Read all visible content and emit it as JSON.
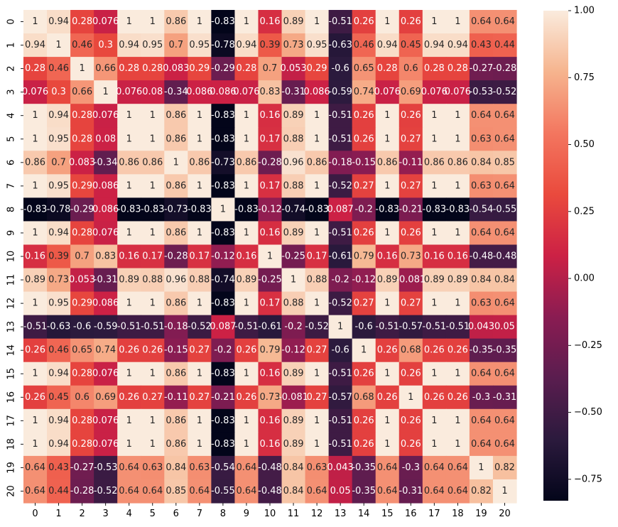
{
  "chart_data": {
    "type": "heatmap",
    "title": "",
    "xlabel": "",
    "ylabel": "",
    "x_labels": [
      "0",
      "1",
      "2",
      "3",
      "4",
      "5",
      "6",
      "7",
      "8",
      "9",
      "10",
      "11",
      "12",
      "13",
      "14",
      "15",
      "16",
      "17",
      "18",
      "19",
      "20"
    ],
    "y_labels": [
      "0",
      "1",
      "2",
      "3",
      "4",
      "5",
      "6",
      "7",
      "8",
      "9",
      "10",
      "11",
      "12",
      "13",
      "14",
      "15",
      "16",
      "17",
      "18",
      "19",
      "20"
    ],
    "colorbar": {
      "ticks": [
        "1.00",
        "0.75",
        "0.50",
        "0.25",
        "0.00",
        "−0.25",
        "−0.50",
        "−0.75"
      ],
      "vmin": -0.83,
      "vmax": 1.0
    },
    "cell_labels": [
      [
        "1",
        "0.94",
        "0.28",
        "0.076",
        "1",
        "1",
        "0.86",
        "1",
        "-0.83",
        "1",
        "0.16",
        "0.89",
        "1",
        "-0.51",
        "0.26",
        "1",
        "0.26",
        "1",
        "1",
        "0.64",
        "0.64"
      ],
      [
        "0.94",
        "1",
        "0.46",
        "0.3",
        "0.94",
        "0.95",
        "0.7",
        "0.95",
        "-0.78",
        "0.94",
        "0.39",
        "0.73",
        "0.95",
        "-0.63",
        "0.46",
        "0.94",
        "0.45",
        "0.94",
        "0.94",
        "0.43",
        "0.44"
      ],
      [
        "0.28",
        "0.46",
        "1",
        "0.66",
        "0.28",
        "0.28",
        "0.083",
        "0.29",
        "-0.29",
        "0.28",
        "0.7",
        "0.053",
        "0.29",
        "-0.6",
        "0.65",
        "0.28",
        "0.6",
        "0.28",
        "0.28",
        "-0.27",
        "-0.28"
      ],
      [
        "0.076",
        "0.3",
        "0.66",
        "1",
        "0.076",
        "0.08",
        "-0.34",
        "0.086",
        "0.086",
        "0.076",
        "0.83",
        "-0.31",
        "0.086",
        "-0.59",
        "0.74",
        "0.076",
        "0.69",
        "0.076",
        "0.076",
        "-0.53",
        "-0.52"
      ],
      [
        "1",
        "0.94",
        "0.28",
        "0.076",
        "1",
        "1",
        "0.86",
        "1",
        "-0.83",
        "1",
        "0.16",
        "0.89",
        "1",
        "-0.51",
        "0.26",
        "1",
        "0.26",
        "1",
        "1",
        "0.64",
        "0.64"
      ],
      [
        "1",
        "0.95",
        "0.28",
        "0.08",
        "1",
        "1",
        "0.86",
        "1",
        "-0.83",
        "1",
        "0.17",
        "0.88",
        "1",
        "-0.51",
        "0.26",
        "1",
        "0.27",
        "1",
        "1",
        "0.63",
        "0.64"
      ],
      [
        "0.86",
        "0.7",
        "0.083",
        "-0.34",
        "0.86",
        "0.86",
        "1",
        "0.86",
        "-0.73",
        "0.86",
        "-0.28",
        "0.96",
        "0.86",
        "-0.18",
        "-0.15",
        "0.86",
        "-0.11",
        "0.86",
        "0.86",
        "0.84",
        "0.85"
      ],
      [
        "1",
        "0.95",
        "0.29",
        "0.086",
        "1",
        "1",
        "0.86",
        "1",
        "-0.83",
        "1",
        "0.17",
        "0.88",
        "1",
        "-0.52",
        "0.27",
        "1",
        "0.27",
        "1",
        "1",
        "0.63",
        "0.64"
      ],
      [
        "-0.83",
        "-0.78",
        "-0.29",
        "0.086",
        "-0.83",
        "-0.83",
        "-0.73",
        "-0.83",
        "1",
        "-0.83",
        "-0.12",
        "-0.74",
        "-0.83",
        "0.087",
        "-0.2",
        "-0.83",
        "-0.21",
        "-0.83",
        "-0.83",
        "-0.54",
        "-0.55"
      ],
      [
        "1",
        "0.94",
        "0.28",
        "0.076",
        "1",
        "1",
        "0.86",
        "1",
        "-0.83",
        "1",
        "0.16",
        "0.89",
        "1",
        "-0.51",
        "0.26",
        "1",
        "0.26",
        "1",
        "1",
        "0.64",
        "0.64"
      ],
      [
        "0.16",
        "0.39",
        "0.7",
        "0.83",
        "0.16",
        "0.17",
        "-0.28",
        "0.17",
        "-0.12",
        "0.16",
        "1",
        "-0.25",
        "0.17",
        "-0.61",
        "0.79",
        "0.16",
        "0.73",
        "0.16",
        "0.16",
        "-0.48",
        "-0.48"
      ],
      [
        "0.89",
        "0.73",
        "0.053",
        "-0.31",
        "0.89",
        "0.88",
        "0.96",
        "0.88",
        "-0.74",
        "0.89",
        "-0.25",
        "1",
        "0.88",
        "-0.2",
        "-0.12",
        "0.89",
        "-0.081",
        "0.89",
        "0.89",
        "0.84",
        "0.84"
      ],
      [
        "1",
        "0.95",
        "0.29",
        "0.086",
        "1",
        "1",
        "0.86",
        "1",
        "-0.83",
        "1",
        "0.17",
        "0.88",
        "1",
        "-0.52",
        "0.27",
        "1",
        "0.27",
        "1",
        "1",
        "0.63",
        "0.64"
      ],
      [
        "-0.51",
        "-0.63",
        "-0.6",
        "-0.59",
        "-0.51",
        "-0.51",
        "-0.18",
        "-0.52",
        "0.087",
        "-0.51",
        "-0.61",
        "-0.2",
        "-0.52",
        "1",
        "-0.6",
        "-0.51",
        "-0.57",
        "-0.51",
        "-0.51",
        "0.043",
        "0.05"
      ],
      [
        "0.26",
        "0.46",
        "0.65",
        "0.74",
        "0.26",
        "0.26",
        "-0.15",
        "0.27",
        "-0.2",
        "0.26",
        "0.79",
        "-0.12",
        "0.27",
        "-0.6",
        "1",
        "0.26",
        "0.68",
        "0.26",
        "0.26",
        "-0.35",
        "-0.35"
      ],
      [
        "1",
        "0.94",
        "0.28",
        "0.076",
        "1",
        "1",
        "0.86",
        "1",
        "-0.83",
        "1",
        "0.16",
        "0.89",
        "1",
        "-0.51",
        "0.26",
        "1",
        "0.26",
        "1",
        "1",
        "0.64",
        "0.64"
      ],
      [
        "0.26",
        "0.45",
        "0.6",
        "0.69",
        "0.26",
        "0.27",
        "-0.11",
        "0.27",
        "-0.21",
        "0.26",
        "0.73",
        "-0.081",
        "0.27",
        "-0.57",
        "0.68",
        "0.26",
        "1",
        "0.26",
        "0.26",
        "-0.3",
        "-0.31"
      ],
      [
        "1",
        "0.94",
        "0.28",
        "0.076",
        "1",
        "1",
        "0.86",
        "1",
        "-0.83",
        "1",
        "0.16",
        "0.89",
        "1",
        "-0.51",
        "0.26",
        "1",
        "0.26",
        "1",
        "1",
        "0.64",
        "0.64"
      ],
      [
        "1",
        "0.94",
        "0.28",
        "0.076",
        "1",
        "1",
        "0.86",
        "1",
        "-0.83",
        "1",
        "0.16",
        "0.89",
        "1",
        "-0.51",
        "0.26",
        "1",
        "0.26",
        "1",
        "1",
        "0.64",
        "0.64"
      ],
      [
        "0.64",
        "0.43",
        "-0.27",
        "-0.53",
        "0.64",
        "0.63",
        "0.84",
        "0.63",
        "-0.54",
        "0.64",
        "-0.48",
        "0.84",
        "0.63",
        "0.043",
        "-0.35",
        "0.64",
        "-0.3",
        "0.64",
        "0.64",
        "1",
        "0.82"
      ],
      [
        "0.64",
        "0.44",
        "-0.28",
        "-0.52",
        "0.64",
        "0.64",
        "0.85",
        "0.64",
        "-0.55",
        "0.64",
        "-0.48",
        "0.84",
        "0.64",
        "0.05",
        "-0.35",
        "0.64",
        "-0.31",
        "0.64",
        "0.64",
        "0.82",
        "1"
      ]
    ]
  }
}
